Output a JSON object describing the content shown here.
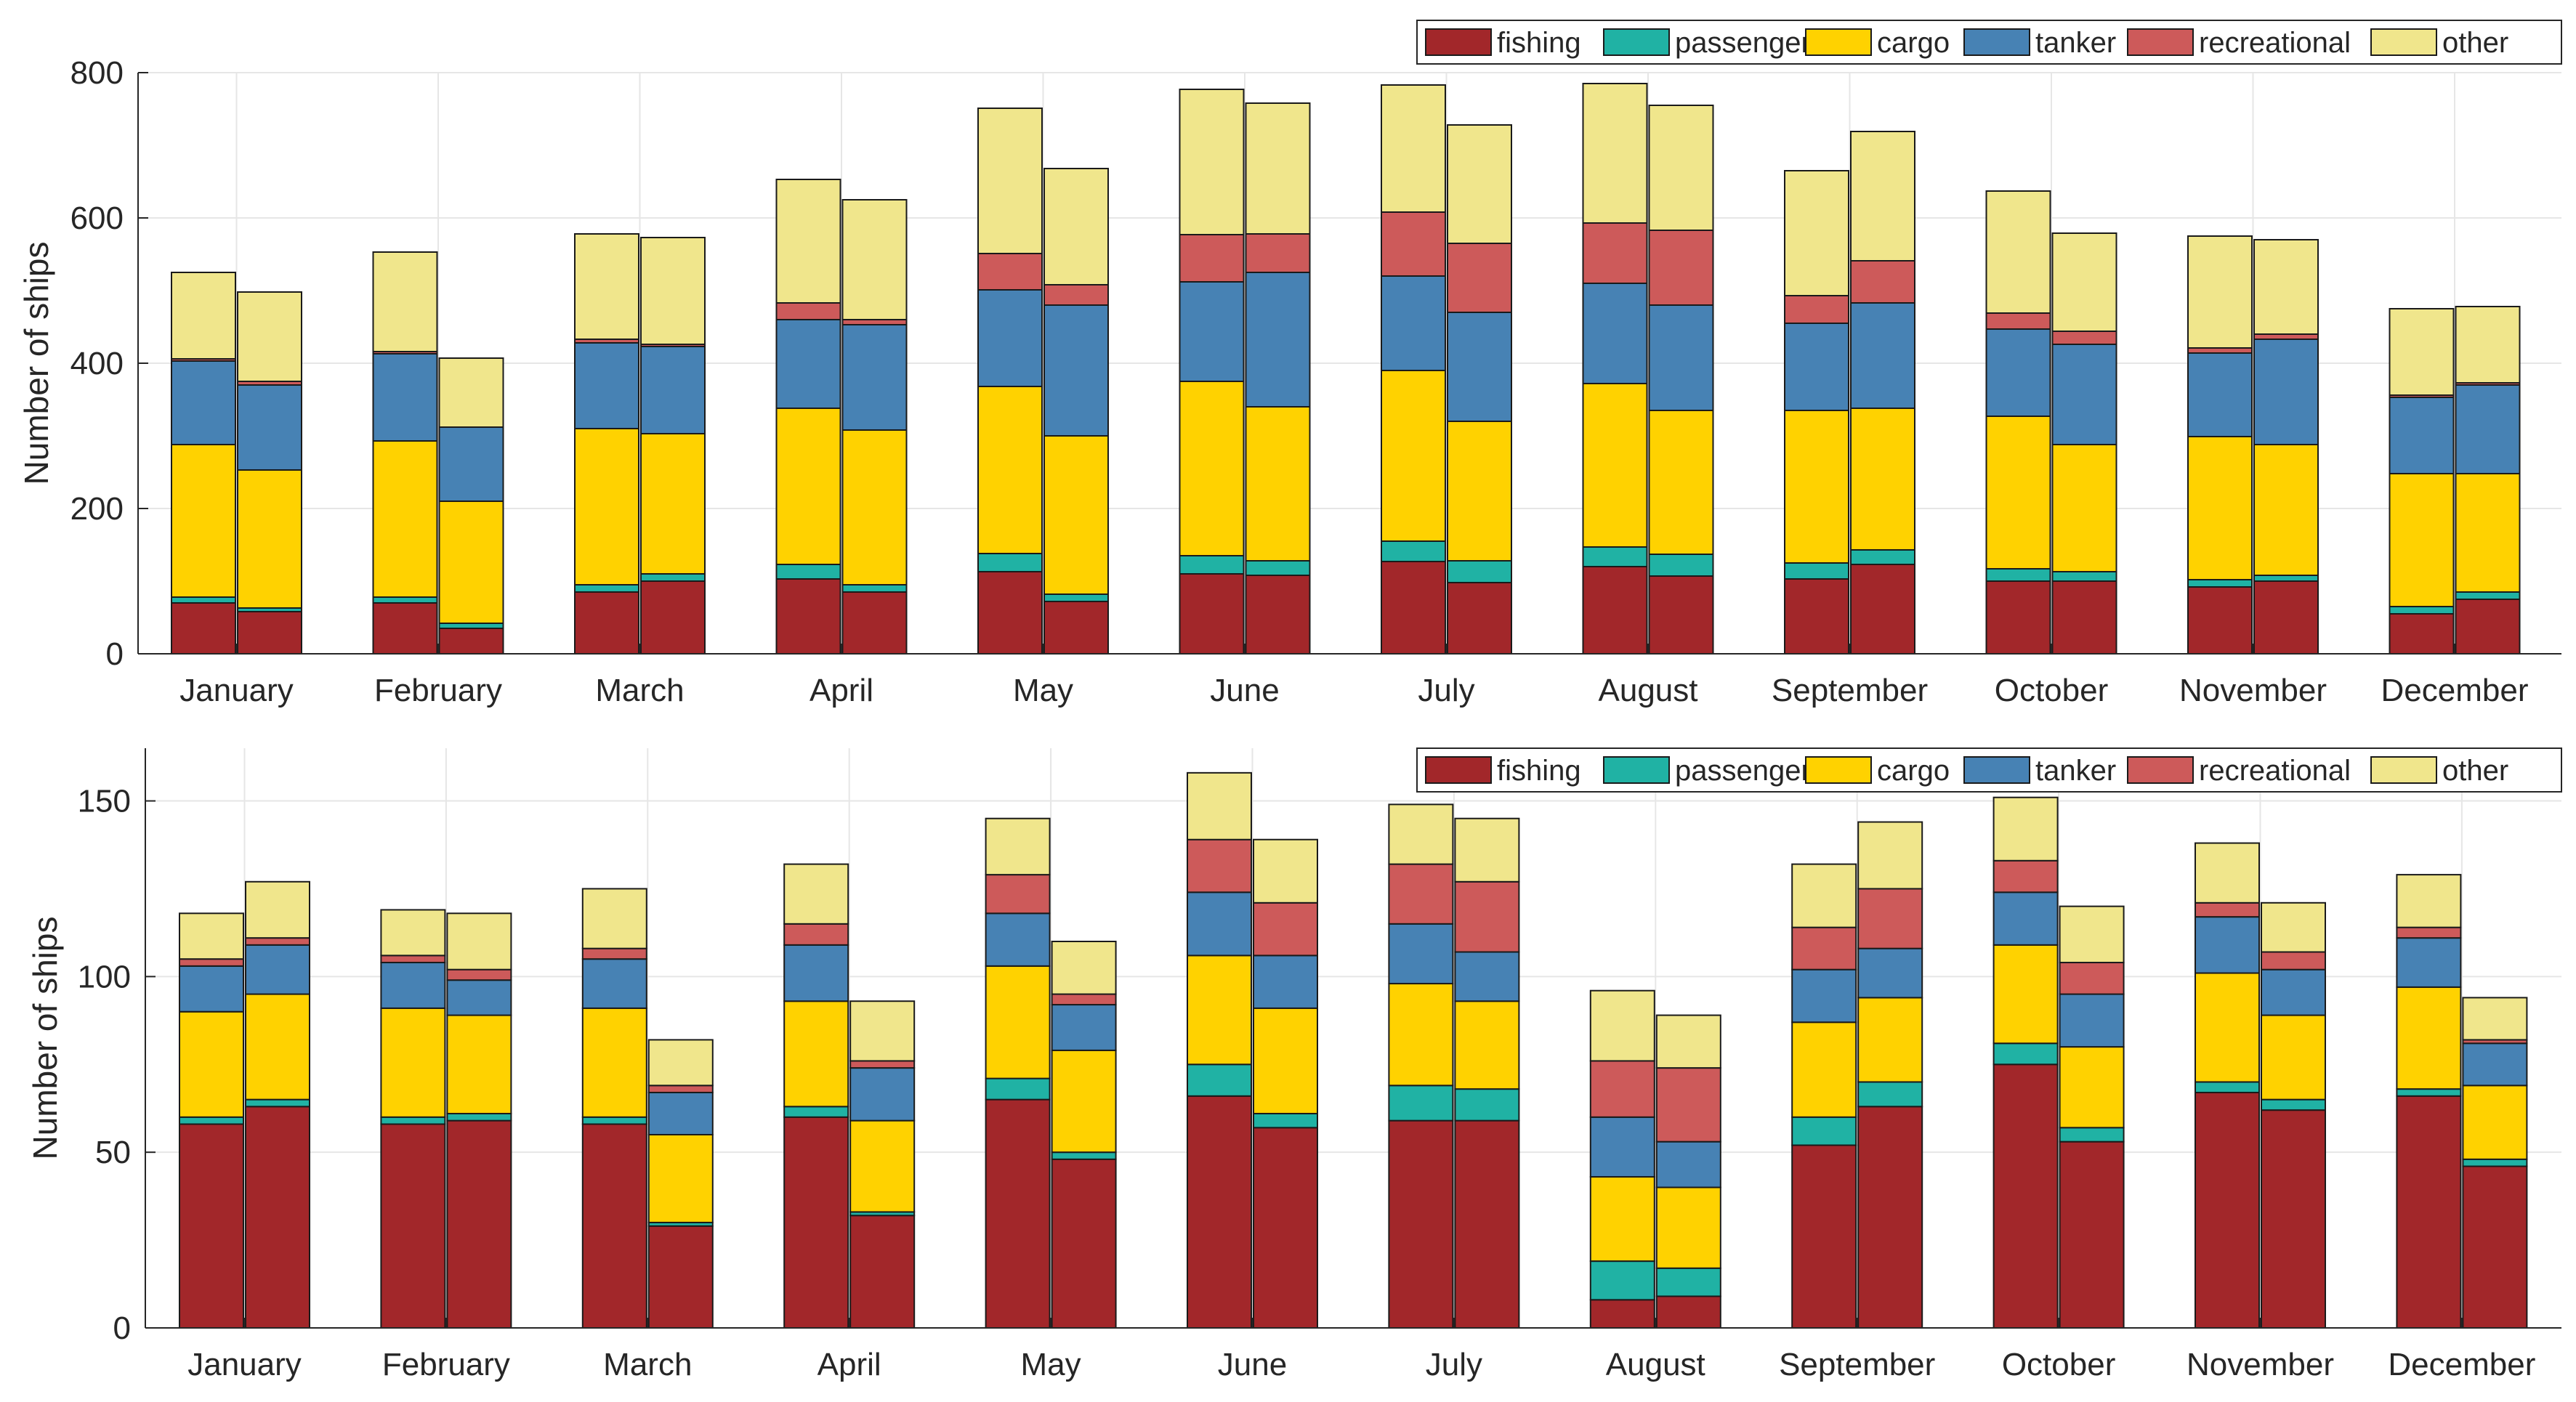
{
  "colors": {
    "fishing": "#a2272a",
    "passenger": "#20b2a4",
    "cargo": "#ffd200",
    "tanker": "#4782b4",
    "recreational": "#cd5a5a",
    "other": "#f0e68c"
  },
  "chart_data": [
    {
      "type": "bar",
      "stacked": true,
      "grouped_bars_per_category": 2,
      "ylabel": "Number of ships",
      "xlabel": "",
      "ylim": [
        0,
        800
      ],
      "yticks": [
        0,
        200,
        400,
        600,
        800
      ],
      "grid": true,
      "legend": [
        "fishing",
        "passenger",
        "cargo",
        "tanker",
        "recreational",
        "other"
      ],
      "legend_position": "top-right",
      "categories": [
        "January",
        "February",
        "March",
        "April",
        "May",
        "June",
        "July",
        "August",
        "September",
        "October",
        "November",
        "December"
      ],
      "series": [
        {
          "name": "fishing",
          "values": [
            [
              70,
              58
            ],
            [
              70,
              35
            ],
            [
              85,
              100
            ],
            [
              103,
              85
            ],
            [
              113,
              72
            ],
            [
              110,
              108
            ],
            [
              127,
              98
            ],
            [
              120,
              107
            ],
            [
              103,
              123
            ],
            [
              100,
              100
            ],
            [
              92,
              100
            ],
            [
              55,
              75
            ]
          ]
        },
        {
          "name": "passenger",
          "values": [
            [
              8,
              5
            ],
            [
              8,
              7
            ],
            [
              10,
              10
            ],
            [
              20,
              10
            ],
            [
              25,
              10
            ],
            [
              25,
              20
            ],
            [
              28,
              30
            ],
            [
              27,
              30
            ],
            [
              22,
              20
            ],
            [
              17,
              13
            ],
            [
              10,
              8
            ],
            [
              10,
              10
            ]
          ]
        },
        {
          "name": "cargo",
          "values": [
            [
              210,
              190
            ],
            [
              215,
              168
            ],
            [
              215,
              193
            ],
            [
              215,
              213
            ],
            [
              230,
              218
            ],
            [
              240,
              212
            ],
            [
              235,
              192
            ],
            [
              225,
              198
            ],
            [
              210,
              195
            ],
            [
              210,
              175
            ],
            [
              197,
              180
            ],
            [
              183,
              163
            ]
          ]
        },
        {
          "name": "tanker",
          "values": [
            [
              115,
              117
            ],
            [
              120,
              102
            ],
            [
              118,
              120
            ],
            [
              122,
              145
            ],
            [
              133,
              180
            ],
            [
              137,
              185
            ],
            [
              130,
              150
            ],
            [
              138,
              145
            ],
            [
              120,
              145
            ],
            [
              120,
              138
            ],
            [
              115,
              145
            ],
            [
              105,
              122
            ]
          ]
        },
        {
          "name": "recreational",
          "values": [
            [
              3,
              5
            ],
            [
              3,
              0
            ],
            [
              5,
              3
            ],
            [
              23,
              7
            ],
            [
              50,
              28
            ],
            [
              65,
              53
            ],
            [
              88,
              95
            ],
            [
              83,
              103
            ],
            [
              38,
              58
            ],
            [
              22,
              18
            ],
            [
              7,
              7
            ],
            [
              3,
              3
            ]
          ]
        },
        {
          "name": "other",
          "values": [
            [
              119,
              123
            ],
            [
              137,
              95
            ],
            [
              145,
              147
            ],
            [
              170,
              165
            ],
            [
              200,
              160
            ],
            [
              200,
              180
            ],
            [
              175,
              163
            ],
            [
              192,
              172
            ],
            [
              172,
              178
            ],
            [
              168,
              135
            ],
            [
              154,
              130
            ],
            [
              119,
              105
            ]
          ]
        }
      ]
    },
    {
      "type": "bar",
      "stacked": true,
      "grouped_bars_per_category": 2,
      "ylabel": "Number of ships",
      "xlabel": "",
      "ylim": [
        0,
        165
      ],
      "yticks": [
        0,
        50,
        100,
        150
      ],
      "grid": true,
      "legend": [
        "fishing",
        "passenger",
        "cargo",
        "tanker",
        "recreational",
        "other"
      ],
      "legend_position": "top-right",
      "categories": [
        "January",
        "February",
        "March",
        "April",
        "May",
        "June",
        "July",
        "August",
        "September",
        "October",
        "November",
        "December"
      ],
      "series": [
        {
          "name": "fishing",
          "values": [
            [
              58,
              63
            ],
            [
              58,
              59
            ],
            [
              58,
              29
            ],
            [
              60,
              32
            ],
            [
              65,
              48
            ],
            [
              66,
              57
            ],
            [
              59,
              59
            ],
            [
              8,
              9
            ],
            [
              52,
              63
            ],
            [
              75,
              53
            ],
            [
              67,
              62
            ],
            [
              66,
              46
            ]
          ]
        },
        {
          "name": "passenger",
          "values": [
            [
              2,
              2
            ],
            [
              2,
              2
            ],
            [
              2,
              1
            ],
            [
              3,
              1
            ],
            [
              6,
              2
            ],
            [
              9,
              4
            ],
            [
              10,
              9
            ],
            [
              11,
              8
            ],
            [
              8,
              7
            ],
            [
              6,
              4
            ],
            [
              3,
              3
            ],
            [
              2,
              2
            ]
          ]
        },
        {
          "name": "cargo",
          "values": [
            [
              30,
              30
            ],
            [
              31,
              28
            ],
            [
              31,
              25
            ],
            [
              30,
              26
            ],
            [
              32,
              29
            ],
            [
              31,
              30
            ],
            [
              29,
              25
            ],
            [
              24,
              23
            ],
            [
              27,
              24
            ],
            [
              28,
              23
            ],
            [
              31,
              24
            ],
            [
              29,
              21
            ]
          ]
        },
        {
          "name": "tanker",
          "values": [
            [
              13,
              14
            ],
            [
              13,
              10
            ],
            [
              14,
              12
            ],
            [
              16,
              15
            ],
            [
              15,
              13
            ],
            [
              18,
              15
            ],
            [
              17,
              14
            ],
            [
              17,
              13
            ],
            [
              15,
              14
            ],
            [
              15,
              15
            ],
            [
              16,
              13
            ],
            [
              14,
              12
            ]
          ]
        },
        {
          "name": "recreational",
          "values": [
            [
              2,
              2
            ],
            [
              2,
              3
            ],
            [
              3,
              2
            ],
            [
              6,
              2
            ],
            [
              11,
              3
            ],
            [
              15,
              15
            ],
            [
              17,
              20
            ],
            [
              16,
              21
            ],
            [
              12,
              17
            ],
            [
              9,
              9
            ],
            [
              4,
              5
            ],
            [
              3,
              1
            ]
          ]
        },
        {
          "name": "other",
          "values": [
            [
              13,
              16
            ],
            [
              13,
              16
            ],
            [
              17,
              13
            ],
            [
              17,
              17
            ],
            [
              16,
              15
            ],
            [
              19,
              18
            ],
            [
              17,
              18
            ],
            [
              20,
              15
            ],
            [
              18,
              19
            ],
            [
              18,
              16
            ],
            [
              17,
              14
            ],
            [
              15,
              12
            ]
          ]
        }
      ]
    }
  ]
}
